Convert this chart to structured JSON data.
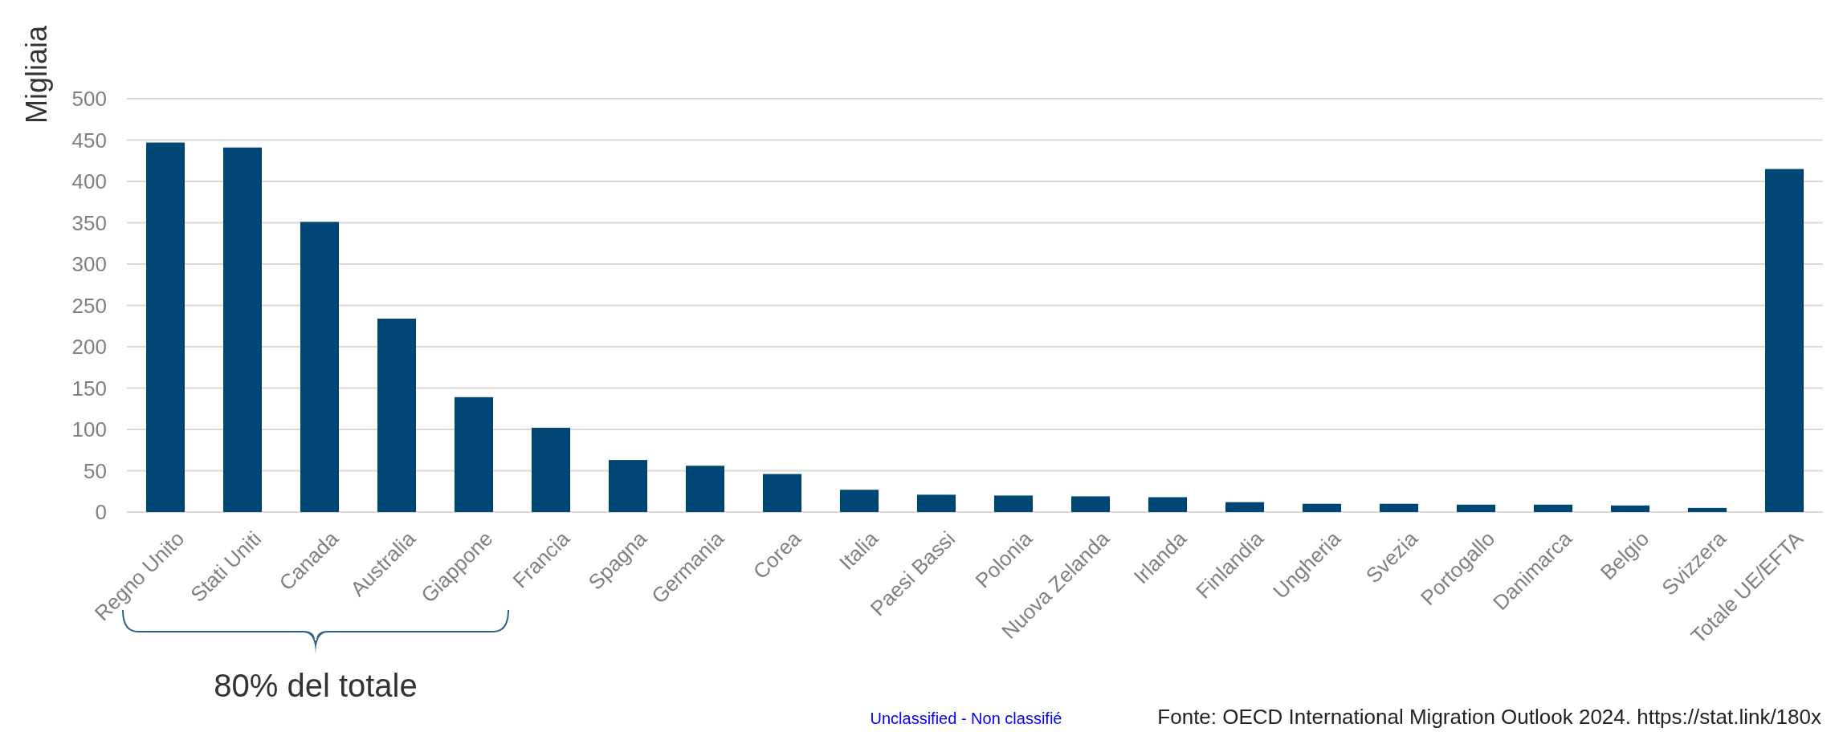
{
  "chart_data": {
    "type": "bar",
    "ylabel": "Migliaia",
    "categories": [
      "Regno Unito",
      "Stati Uniti",
      "Canada",
      "Australia",
      "Giappone",
      "Francia",
      "Spagna",
      "Germania",
      "Corea",
      "Italia",
      "Paesi Bassi",
      "Polonia",
      "Nuova Zelanda",
      "Irlanda",
      "Finlandia",
      "Ungheria",
      "Svezia",
      "Portogallo",
      "Danimarca",
      "Belgio",
      "Svizzera",
      "Totale UE/EFTA"
    ],
    "values": [
      447,
      441,
      351,
      234,
      139,
      102,
      63,
      56,
      46,
      27,
      21,
      20,
      19,
      18,
      12,
      10,
      10,
      9,
      9,
      8,
      5,
      415
    ],
    "color": "#004674",
    "ylim": [
      0,
      500
    ],
    "yticks": [
      0,
      50,
      100,
      150,
      200,
      250,
      300,
      350,
      400,
      450,
      500
    ],
    "grid": "y",
    "annotations": [
      "80% del totale",
      "Unclassified - Non classifié",
      "Fonte: OECD International Migration Outlook 2024. https://stat.link/180x"
    ]
  }
}
